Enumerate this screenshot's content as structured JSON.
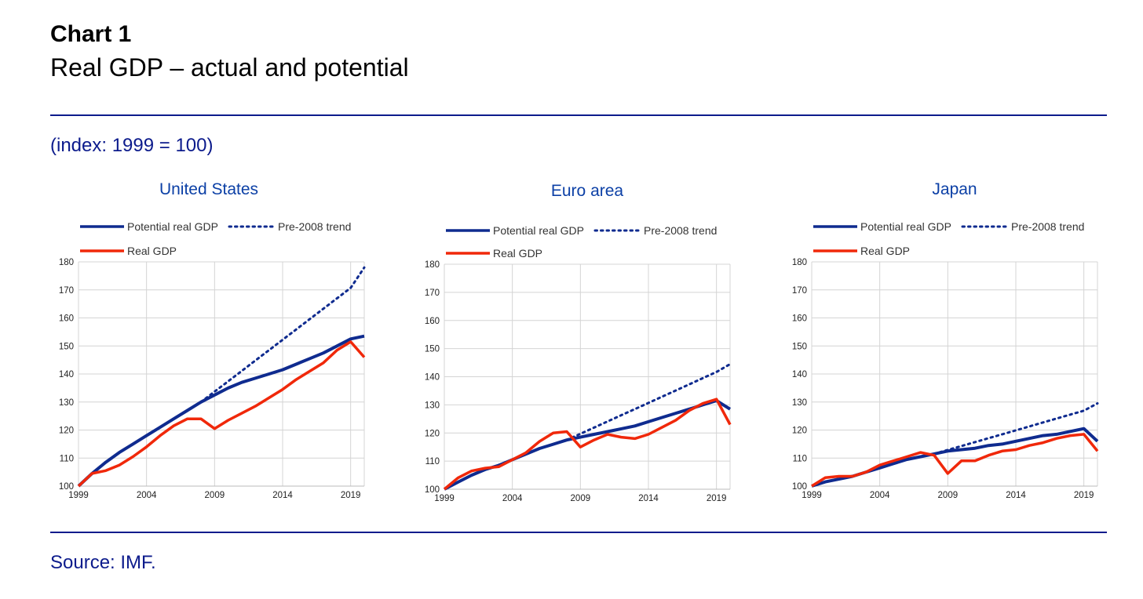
{
  "header": {
    "chart_number": "Chart 1",
    "title": "Real GDP – actual and potential"
  },
  "units_label": "(index: 1999 = 100)",
  "source": "Source: IMF.",
  "colors": {
    "potential": "#0f2b8f",
    "trend": "#0f2b8f",
    "real": "#f0280a",
    "rule": "#0c1b8c",
    "panel_title": "#0c40a6"
  },
  "chart_data": [
    {
      "type": "line",
      "title": "United States",
      "xlim": [
        1999,
        2020
      ],
      "ylim": [
        100,
        180
      ],
      "x_ticks": [
        1999,
        2004,
        2009,
        2014,
        2019
      ],
      "y_ticks": [
        100,
        110,
        120,
        130,
        140,
        150,
        160,
        170,
        180
      ],
      "grid": "vertical",
      "legend": "top",
      "x": [
        1999,
        2000,
        2001,
        2002,
        2003,
        2004,
        2005,
        2006,
        2007,
        2008,
        2009,
        2010,
        2011,
        2012,
        2013,
        2014,
        2015,
        2016,
        2017,
        2018,
        2019,
        2020
      ],
      "series": [
        {
          "name": "Potential real GDP",
          "style": "solid",
          "values": [
            100,
            104.5,
            108.5,
            112,
            115,
            118,
            121,
            124,
            127,
            130,
            132.5,
            135,
            137,
            138.5,
            140,
            141.5,
            143.5,
            145.5,
            147.5,
            150,
            152.5,
            153.5
          ]
        },
        {
          "name": "Pre-2008 trend",
          "style": "dotted",
          "x": [
            2008,
            2009,
            2010,
            2011,
            2012,
            2013,
            2014,
            2015,
            2016,
            2017,
            2018,
            2019,
            2020
          ],
          "values": [
            130,
            133.7,
            137.4,
            141.1,
            144.8,
            148.5,
            152.2,
            155.9,
            159.6,
            163.3,
            167,
            170.7,
            178
          ]
        },
        {
          "name": "Real GDP",
          "style": "solid",
          "values": [
            100,
            104.5,
            105.5,
            107.5,
            110.5,
            114,
            118,
            121.5,
            124,
            124,
            120.5,
            123.5,
            126,
            128.5,
            131.5,
            134.5,
            138,
            141,
            144,
            148.5,
            151.5,
            146
          ]
        }
      ]
    },
    {
      "type": "line",
      "title": "Euro area",
      "xlim": [
        1999,
        2020
      ],
      "ylim": [
        100,
        180
      ],
      "x_ticks": [
        1999,
        2004,
        2009,
        2014,
        2019
      ],
      "y_ticks": [
        100,
        110,
        120,
        130,
        140,
        150,
        160,
        170,
        180
      ],
      "grid": "vertical",
      "legend": "top",
      "x": [
        1999,
        2000,
        2001,
        2002,
        2003,
        2004,
        2005,
        2006,
        2007,
        2008,
        2009,
        2010,
        2011,
        2012,
        2013,
        2014,
        2015,
        2016,
        2017,
        2018,
        2019,
        2020
      ],
      "series": [
        {
          "name": "Potential real GDP",
          "style": "solid",
          "values": [
            100,
            102.5,
            105,
            107,
            108.5,
            110.5,
            112.5,
            114.5,
            116,
            117.5,
            118.5,
            119.5,
            120.5,
            121.5,
            122.5,
            124,
            125.5,
            127,
            128.5,
            130,
            131.5,
            128.5
          ]
        },
        {
          "name": "Pre-2008 trend",
          "style": "dotted",
          "x": [
            2008,
            2009,
            2010,
            2011,
            2012,
            2013,
            2014,
            2015,
            2016,
            2017,
            2018,
            2019,
            2020
          ],
          "values": [
            117.5,
            119.7,
            121.9,
            124.1,
            126.3,
            128.5,
            130.7,
            132.9,
            135.1,
            137.3,
            139.5,
            141.7,
            144.5
          ]
        },
        {
          "name": "Real GDP",
          "style": "solid",
          "values": [
            100,
            104,
            106.5,
            107.5,
            108,
            110.5,
            113,
            117,
            120,
            120.5,
            115,
            117.5,
            119.5,
            118.5,
            118,
            119.5,
            122,
            124.5,
            128,
            130.5,
            132,
            123
          ]
        }
      ]
    },
    {
      "type": "line",
      "title": "Japan",
      "xlim": [
        1999,
        2020
      ],
      "ylim": [
        100,
        180
      ],
      "x_ticks": [
        1999,
        2004,
        2009,
        2014,
        2019
      ],
      "y_ticks": [
        100,
        110,
        120,
        130,
        140,
        150,
        160,
        170,
        180
      ],
      "grid": "vertical",
      "legend": "top",
      "x": [
        1999,
        2000,
        2001,
        2002,
        2003,
        2004,
        2005,
        2006,
        2007,
        2008,
        2009,
        2010,
        2011,
        2012,
        2013,
        2014,
        2015,
        2016,
        2017,
        2018,
        2019,
        2020
      ],
      "series": [
        {
          "name": "Potential real GDP",
          "style": "solid",
          "values": [
            100,
            101.5,
            102.5,
            103.5,
            105,
            106.5,
            108,
            109.5,
            110.5,
            111.5,
            112.5,
            113,
            113.5,
            114.5,
            115,
            116,
            117,
            118,
            118.5,
            119.5,
            120.5,
            116
          ]
        },
        {
          "name": "Pre-2008 trend",
          "style": "dotted",
          "x": [
            2008,
            2009,
            2010,
            2011,
            2012,
            2013,
            2014,
            2015,
            2016,
            2017,
            2018,
            2019,
            2020
          ],
          "values": [
            111.5,
            112.9,
            114.3,
            115.7,
            117.1,
            118.5,
            119.9,
            121.3,
            122.7,
            124.1,
            125.5,
            126.9,
            129.5
          ]
        },
        {
          "name": "Real GDP",
          "style": "solid",
          "values": [
            100,
            103,
            103.5,
            103.5,
            105,
            107.5,
            109,
            110.5,
            112,
            111,
            104.5,
            109,
            109,
            111,
            112.5,
            113,
            114.5,
            115.5,
            117,
            118,
            118.5,
            112.5
          ]
        }
      ]
    }
  ]
}
